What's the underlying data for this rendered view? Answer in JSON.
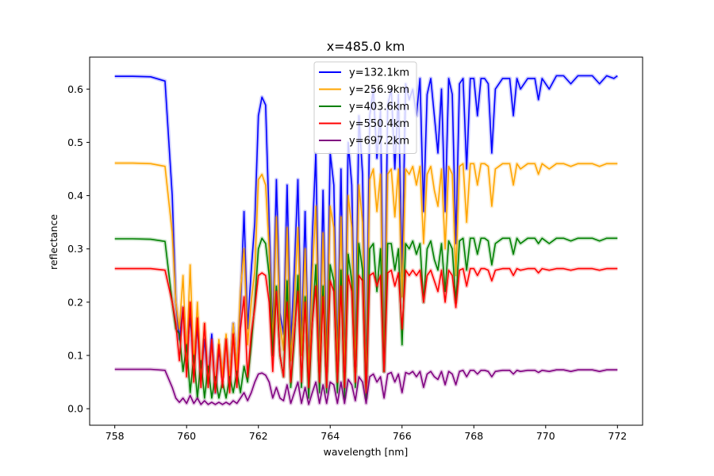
{
  "chart_data": {
    "type": "line",
    "title": "x=485.0 km",
    "xlabel": "wavelength [nm]",
    "ylabel": "reflectance",
    "xlim": [
      757.3,
      772.7
    ],
    "ylim": [
      -0.031,
      0.66
    ],
    "xticks": [
      758,
      760,
      762,
      764,
      766,
      768,
      770,
      772
    ],
    "yticks": [
      0.0,
      0.1,
      0.2,
      0.3,
      0.4,
      0.5,
      0.6
    ],
    "ytick_labels": [
      "0.0",
      "0.1",
      "0.2",
      "0.3",
      "0.4",
      "0.5",
      "0.6"
    ],
    "grid": false,
    "legend_position": "top-center",
    "x": [
      758.0,
      758.5,
      759.0,
      759.4,
      759.6,
      759.7,
      759.8,
      759.9,
      760.0,
      760.1,
      760.2,
      760.3,
      760.4,
      760.5,
      760.6,
      760.7,
      760.8,
      760.9,
      761.0,
      761.1,
      761.2,
      761.3,
      761.4,
      761.5,
      761.6,
      761.7,
      761.8,
      761.9,
      762.0,
      762.1,
      762.2,
      762.3,
      762.4,
      762.5,
      762.6,
      762.7,
      762.8,
      762.9,
      763.0,
      763.1,
      763.2,
      763.3,
      763.4,
      763.5,
      763.6,
      763.7,
      763.8,
      763.9,
      764.0,
      764.1,
      764.2,
      764.3,
      764.4,
      764.5,
      764.6,
      764.7,
      764.8,
      764.9,
      765.0,
      765.1,
      765.2,
      765.3,
      765.4,
      765.5,
      765.6,
      765.7,
      765.8,
      765.9,
      766.0,
      766.1,
      766.2,
      766.3,
      766.4,
      766.5,
      766.6,
      766.7,
      766.8,
      766.9,
      767.0,
      767.1,
      767.2,
      767.3,
      767.4,
      767.5,
      767.6,
      767.7,
      767.8,
      767.9,
      768.0,
      768.1,
      768.2,
      768.3,
      768.4,
      768.5,
      768.6,
      768.8,
      769.0,
      769.1,
      769.2,
      769.3,
      769.5,
      769.7,
      769.8,
      769.9,
      770.1,
      770.3,
      770.5,
      770.7,
      770.9,
      771.1,
      771.3,
      771.5,
      771.7,
      771.9,
      772.0
    ],
    "series": [
      {
        "name": "y=132.1km",
        "color": "#0000ff",
        "values": [
          0.624,
          0.624,
          0.623,
          0.615,
          0.4,
          0.2,
          0.13,
          0.19,
          0.1,
          0.17,
          0.09,
          0.15,
          0.06,
          0.13,
          0.05,
          0.14,
          0.03,
          0.11,
          0.06,
          0.13,
          0.05,
          0.16,
          0.07,
          0.19,
          0.37,
          0.15,
          0.26,
          0.35,
          0.55,
          0.585,
          0.57,
          0.35,
          0.14,
          0.43,
          0.18,
          0.14,
          0.42,
          0.12,
          0.26,
          0.43,
          0.12,
          0.37,
          0.07,
          0.32,
          0.48,
          0.09,
          0.41,
          0.08,
          0.48,
          0.42,
          0.09,
          0.45,
          0.07,
          0.5,
          0.42,
          0.08,
          0.55,
          0.44,
          0.05,
          0.55,
          0.6,
          0.47,
          0.56,
          0.07,
          0.57,
          0.6,
          0.45,
          0.59,
          0.25,
          0.61,
          0.58,
          0.6,
          0.55,
          0.62,
          0.37,
          0.59,
          0.62,
          0.55,
          0.48,
          0.6,
          0.37,
          0.62,
          0.59,
          0.31,
          0.61,
          0.62,
          0.45,
          0.62,
          0.62,
          0.55,
          0.62,
          0.62,
          0.61,
          0.48,
          0.6,
          0.62,
          0.62,
          0.55,
          0.62,
          0.6,
          0.62,
          0.62,
          0.58,
          0.62,
          0.6,
          0.625,
          0.625,
          0.61,
          0.625,
          0.625,
          0.625,
          0.61,
          0.625,
          0.62,
          0.625
        ]
      },
      {
        "name": "y=256.9km",
        "color": "#ffa500",
        "values": [
          0.461,
          0.461,
          0.46,
          0.455,
          0.33,
          0.2,
          0.15,
          0.25,
          0.09,
          0.27,
          0.08,
          0.2,
          0.06,
          0.16,
          0.05,
          0.12,
          0.04,
          0.13,
          0.06,
          0.14,
          0.05,
          0.16,
          0.07,
          0.22,
          0.3,
          0.12,
          0.2,
          0.26,
          0.43,
          0.44,
          0.42,
          0.3,
          0.12,
          0.36,
          0.16,
          0.11,
          0.34,
          0.09,
          0.2,
          0.34,
          0.1,
          0.3,
          0.06,
          0.25,
          0.38,
          0.07,
          0.33,
          0.07,
          0.38,
          0.34,
          0.07,
          0.36,
          0.06,
          0.4,
          0.34,
          0.07,
          0.42,
          0.35,
          0.04,
          0.43,
          0.45,
          0.37,
          0.44,
          0.07,
          0.44,
          0.45,
          0.36,
          0.45,
          0.21,
          0.45,
          0.44,
          0.455,
          0.42,
          0.455,
          0.31,
          0.44,
          0.455,
          0.41,
          0.38,
          0.45,
          0.3,
          0.455,
          0.44,
          0.25,
          0.455,
          0.46,
          0.35,
          0.46,
          0.46,
          0.42,
          0.46,
          0.46,
          0.455,
          0.38,
          0.45,
          0.46,
          0.46,
          0.42,
          0.46,
          0.45,
          0.46,
          0.46,
          0.44,
          0.46,
          0.45,
          0.46,
          0.46,
          0.455,
          0.46,
          0.46,
          0.46,
          0.455,
          0.46,
          0.46,
          0.46
        ]
      },
      {
        "name": "y=403.6km",
        "color": "#008000",
        "values": [
          0.319,
          0.319,
          0.318,
          0.314,
          0.2,
          0.15,
          0.14,
          0.07,
          0.12,
          0.03,
          0.1,
          0.02,
          0.09,
          0.02,
          0.08,
          0.02,
          0.06,
          0.02,
          0.05,
          0.02,
          0.06,
          0.03,
          0.07,
          0.03,
          0.08,
          0.05,
          0.12,
          0.2,
          0.3,
          0.32,
          0.31,
          0.25,
          0.1,
          0.23,
          0.1,
          0.06,
          0.24,
          0.04,
          0.13,
          0.25,
          0.04,
          0.21,
          0.02,
          0.16,
          0.27,
          0.03,
          0.23,
          0.03,
          0.27,
          0.24,
          0.03,
          0.26,
          0.02,
          0.29,
          0.24,
          0.04,
          0.31,
          0.26,
          0.02,
          0.3,
          0.31,
          0.22,
          0.3,
          0.07,
          0.31,
          0.31,
          0.26,
          0.3,
          0.12,
          0.31,
          0.3,
          0.315,
          0.29,
          0.31,
          0.2,
          0.3,
          0.315,
          0.28,
          0.26,
          0.31,
          0.22,
          0.315,
          0.3,
          0.2,
          0.315,
          0.32,
          0.26,
          0.32,
          0.32,
          0.29,
          0.32,
          0.32,
          0.315,
          0.27,
          0.31,
          0.32,
          0.32,
          0.29,
          0.32,
          0.31,
          0.32,
          0.32,
          0.31,
          0.32,
          0.31,
          0.32,
          0.32,
          0.315,
          0.32,
          0.32,
          0.32,
          0.315,
          0.32,
          0.32,
          0.32
        ]
      },
      {
        "name": "y=550.4km",
        "color": "#ff0000",
        "values": [
          0.263,
          0.263,
          0.263,
          0.26,
          0.2,
          0.16,
          0.09,
          0.19,
          0.06,
          0.2,
          0.05,
          0.17,
          0.04,
          0.16,
          0.04,
          0.13,
          0.03,
          0.12,
          0.04,
          0.13,
          0.03,
          0.14,
          0.04,
          0.15,
          0.21,
          0.06,
          0.14,
          0.19,
          0.25,
          0.255,
          0.25,
          0.2,
          0.07,
          0.22,
          0.1,
          0.06,
          0.2,
          0.05,
          0.14,
          0.22,
          0.05,
          0.2,
          0.04,
          0.16,
          0.23,
          0.05,
          0.21,
          0.04,
          0.24,
          0.22,
          0.05,
          0.23,
          0.04,
          0.25,
          0.22,
          0.05,
          0.25,
          0.24,
          0.03,
          0.25,
          0.255,
          0.23,
          0.25,
          0.07,
          0.255,
          0.26,
          0.23,
          0.255,
          0.15,
          0.26,
          0.25,
          0.26,
          0.25,
          0.26,
          0.2,
          0.25,
          0.26,
          0.24,
          0.22,
          0.26,
          0.2,
          0.26,
          0.25,
          0.19,
          0.26,
          0.263,
          0.23,
          0.263,
          0.263,
          0.25,
          0.263,
          0.263,
          0.26,
          0.24,
          0.26,
          0.263,
          0.263,
          0.25,
          0.263,
          0.26,
          0.263,
          0.263,
          0.255,
          0.263,
          0.26,
          0.263,
          0.263,
          0.26,
          0.263,
          0.263,
          0.263,
          0.26,
          0.263,
          0.263,
          0.263
        ]
      },
      {
        "name": "y=697.2km",
        "color": "#800080",
        "values": [
          0.074,
          0.074,
          0.074,
          0.072,
          0.04,
          0.02,
          0.012,
          0.02,
          0.01,
          0.025,
          0.01,
          0.02,
          0.008,
          0.015,
          0.008,
          0.012,
          0.008,
          0.012,
          0.008,
          0.012,
          0.008,
          0.015,
          0.01,
          0.02,
          0.03,
          0.015,
          0.03,
          0.05,
          0.065,
          0.067,
          0.063,
          0.05,
          0.02,
          0.04,
          0.02,
          0.015,
          0.045,
          0.01,
          0.03,
          0.05,
          0.01,
          0.04,
          0.008,
          0.03,
          0.05,
          0.01,
          0.045,
          0.01,
          0.05,
          0.045,
          0.01,
          0.05,
          0.01,
          0.055,
          0.045,
          0.015,
          0.06,
          0.05,
          0.01,
          0.06,
          0.065,
          0.05,
          0.06,
          0.02,
          0.065,
          0.068,
          0.05,
          0.065,
          0.03,
          0.068,
          0.065,
          0.07,
          0.06,
          0.07,
          0.04,
          0.065,
          0.07,
          0.06,
          0.055,
          0.07,
          0.045,
          0.07,
          0.065,
          0.045,
          0.07,
          0.072,
          0.06,
          0.072,
          0.072,
          0.065,
          0.072,
          0.072,
          0.07,
          0.06,
          0.07,
          0.072,
          0.072,
          0.065,
          0.072,
          0.07,
          0.072,
          0.072,
          0.068,
          0.072,
          0.07,
          0.073,
          0.073,
          0.07,
          0.073,
          0.073,
          0.073,
          0.07,
          0.073,
          0.073,
          0.073
        ]
      }
    ]
  }
}
